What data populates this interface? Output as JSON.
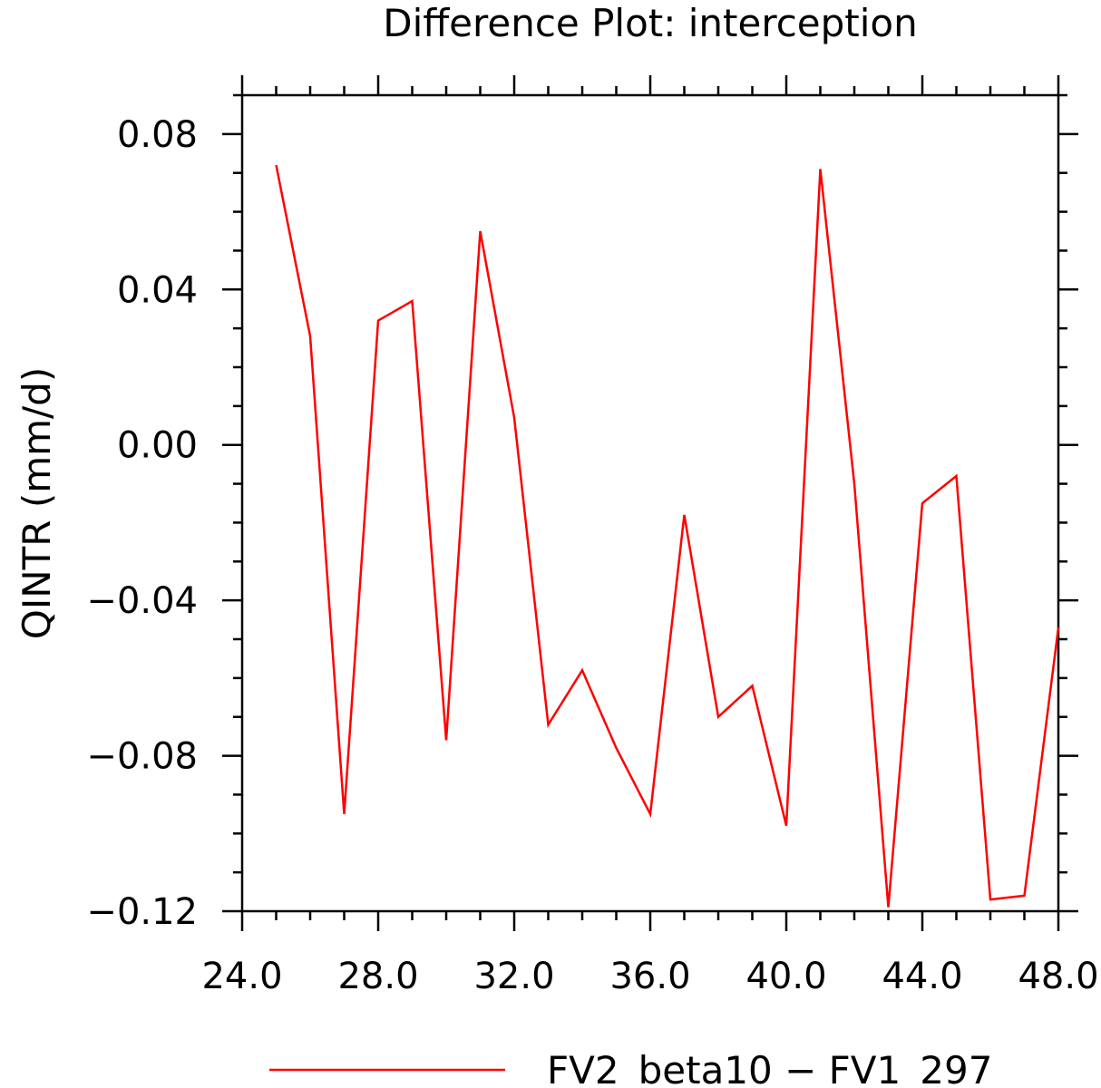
{
  "chart_data": {
    "type": "line",
    "title": "Difference Plot: interception",
    "ylabel": "QINTR  (mm/d)",
    "xlabel": "",
    "xlim": [
      24,
      48
    ],
    "ylim": [
      -0.12,
      0.09
    ],
    "x_ticks": [
      24,
      28,
      32,
      36,
      40,
      44,
      48
    ],
    "x_tick_labels": [
      "24.0",
      "28.0",
      "32.0",
      "36.0",
      "40.0",
      "44.0",
      "48.0"
    ],
    "y_ticks": [
      0.08,
      0.04,
      0.0,
      -0.04,
      -0.08,
      -0.12
    ],
    "y_tick_labels": [
      "0.08",
      "0.04",
      "0.00",
      "−0.04",
      "−0.08",
      "−0.12"
    ],
    "grid": false,
    "legend_position": "bottom-center",
    "series": [
      {
        "name": "FV2_beta10 − FV1_297",
        "color": "#ff0000",
        "x": [
          25,
          26,
          27,
          28,
          29,
          30,
          31,
          32,
          33,
          34,
          35,
          36,
          37,
          38,
          39,
          40,
          41,
          42,
          43,
          44,
          45,
          46,
          47,
          48
        ],
        "y": [
          0.072,
          0.028,
          -0.095,
          0.032,
          0.037,
          -0.076,
          0.055,
          0.007,
          -0.072,
          -0.058,
          -0.078,
          -0.095,
          -0.018,
          -0.07,
          -0.062,
          -0.098,
          0.071,
          -0.01,
          -0.119,
          -0.015,
          -0.008,
          -0.117,
          -0.116,
          -0.047
        ]
      }
    ]
  }
}
